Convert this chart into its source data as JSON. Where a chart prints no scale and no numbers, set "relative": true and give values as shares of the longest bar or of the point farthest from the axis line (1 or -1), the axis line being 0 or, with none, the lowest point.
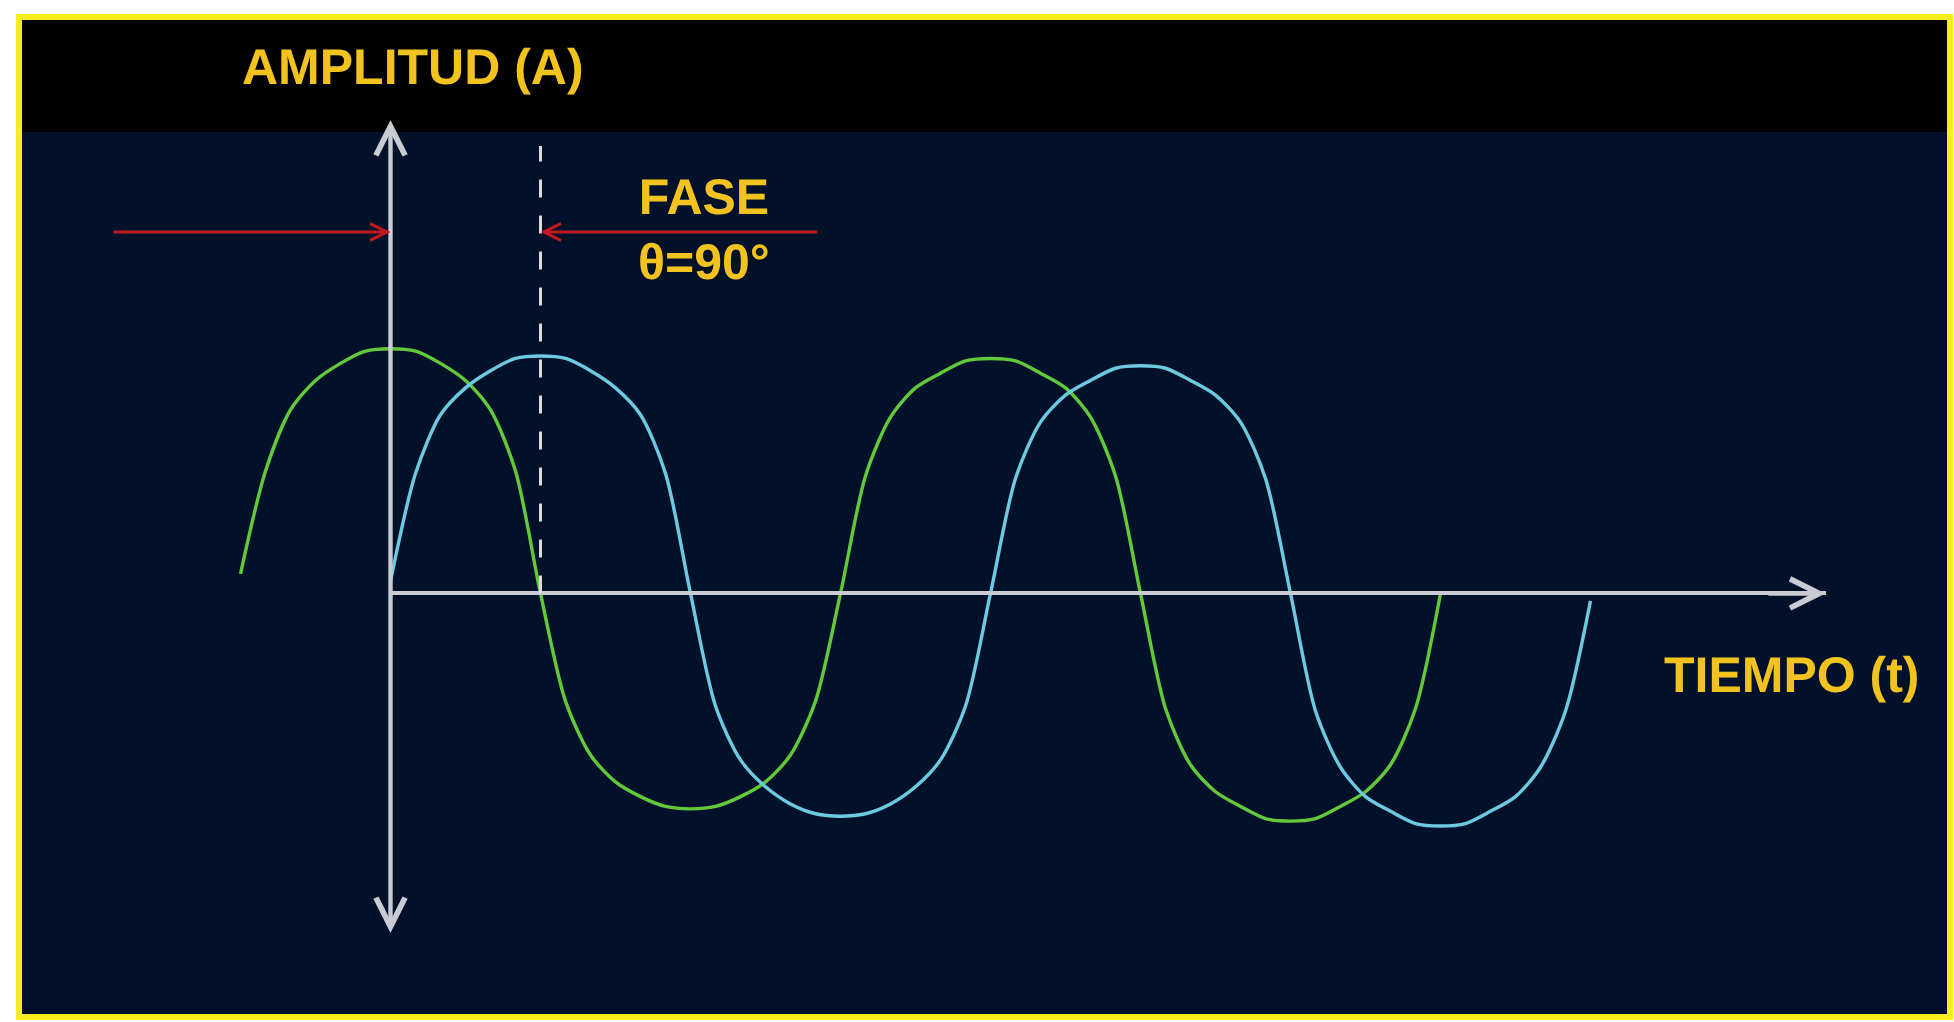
{
  "chart_data": {
    "type": "line",
    "relative": true,
    "xlabel": "TIEMPO (t)",
    "annotations": [
      "AMPLITUD (A)",
      "FASE\nθ=90°"
    ],
    "categories": [
      null,
      null,
      null,
      null,
      null,
      null,
      null,
      null,
      null,
      null,
      null,
      null,
      null,
      null,
      null,
      null,
      null,
      null,
      null,
      null,
      null,
      null,
      null,
      null,
      null,
      null,
      null,
      null,
      null,
      null,
      null,
      null,
      null,
      null,
      null,
      null,
      null,
      null,
      null,
      null,
      null,
      null,
      null,
      null,
      null,
      null,
      null,
      null,
      null,
      null,
      null,
      null,
      null,
      null,
      null,
      null,
      null,
      null,
      null,
      null,
      null,
      null,
      null,
      null
    ],
    "series": [
      {
        "color": "#62c83c",
        "values": [
          0.08,
          0.5,
          0.75,
          0.87,
          0.94,
          0.99,
          1.0,
          0.99,
          0.94,
          0.87,
          0.75,
          0.5,
          0,
          -0.44,
          -0.66,
          -0.77,
          -0.83,
          -0.87,
          -0.88,
          -0.87,
          -0.83,
          -0.77,
          -0.66,
          -0.44,
          0,
          0.48,
          0.72,
          0.84,
          0.9,
          0.95,
          0.96,
          0.95,
          0.9,
          0.84,
          0.72,
          0.48,
          0,
          -0.47,
          -0.7,
          -0.81,
          -0.87,
          -0.92,
          -0.93,
          -0.92,
          -0.87,
          -0.81,
          -0.7,
          -0.47,
          0,
          null,
          null,
          null,
          null,
          null,
          null,
          null,
          null,
          null,
          null,
          null,
          null,
          null,
          null,
          null
        ]
      },
      {
        "color": "#6ccbe0",
        "values": [
          null,
          null,
          null,
          null,
          null,
          null,
          0.05,
          0.49,
          0.73,
          0.84,
          0.91,
          0.96,
          0.97,
          0.96,
          0.91,
          0.84,
          0.73,
          0.49,
          0,
          -0.46,
          -0.68,
          -0.79,
          -0.86,
          -0.9,
          -0.91,
          -0.9,
          -0.86,
          -0.79,
          -0.68,
          -0.46,
          0,
          0.47,
          0.7,
          0.81,
          0.87,
          0.92,
          0.93,
          0.92,
          0.87,
          0.81,
          0.7,
          0.47,
          0,
          -0.48,
          -0.71,
          -0.83,
          -0.89,
          -0.94,
          -0.95,
          -0.94,
          -0.89,
          -0.83,
          -0.71,
          -0.48,
          -0.03,
          null,
          null,
          null,
          null,
          null,
          null,
          null,
          null,
          null
        ]
      }
    ]
  }
}
